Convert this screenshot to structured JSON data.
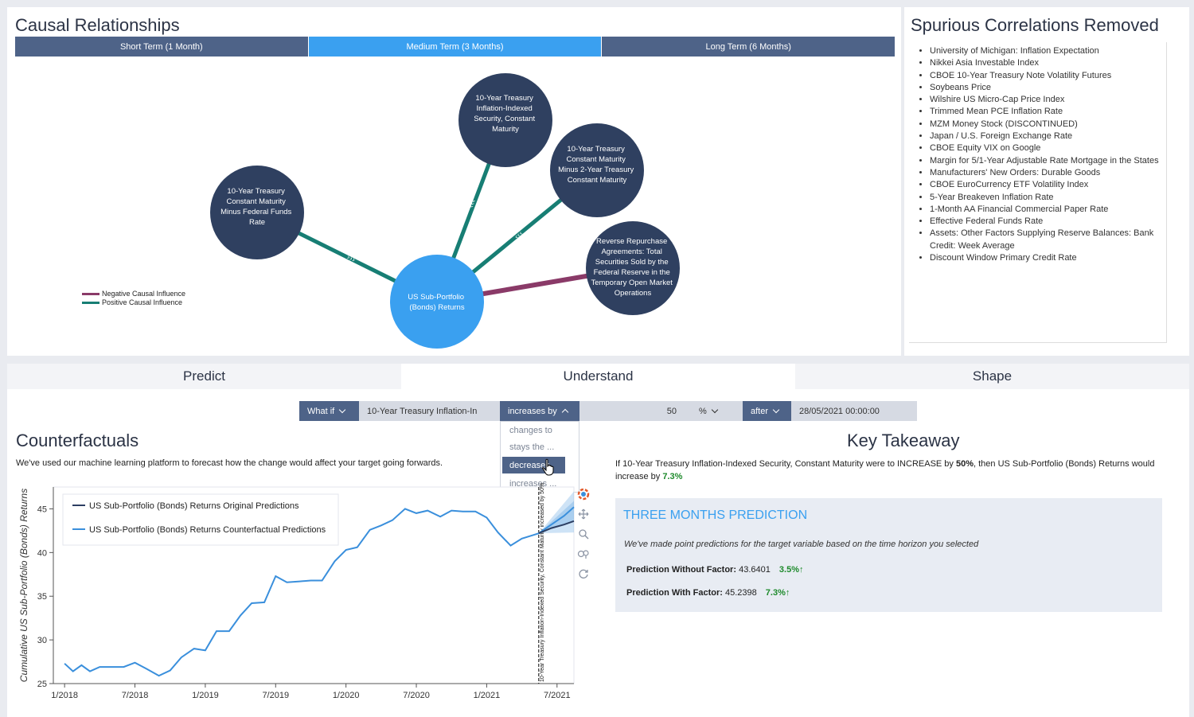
{
  "causal": {
    "title": "Causal Relationships",
    "terms": [
      "Short Term (1 Month)",
      "Medium Term (3 Months)",
      "Long Term (6 Months)"
    ],
    "active_term": 1,
    "nodes": {
      "target": [
        "US Sub-Portfolio",
        "(Bonds) Returns"
      ],
      "n1": [
        "10-Year Treasury",
        "Constant Maturity",
        "Minus Federal Funds",
        "Rate"
      ],
      "n2": [
        "10-Year Treasury",
        "Inflation-Indexed",
        "Security, Constant",
        "Maturity"
      ],
      "n3": [
        "10-Year Treasury",
        "Constant Maturity",
        "Minus 2-Year Treasury",
        "Constant Maturity"
      ],
      "n4": [
        "Reverse Repurchase",
        "Agreements: Total",
        "Securities Sold by the",
        "Federal Reserve in the",
        "Temporary Open Market",
        "Operations"
      ]
    },
    "legend": {
      "negative": "Negative Causal Influence",
      "positive": "Positive Causal Influence",
      "negative_color": "#8a3a68",
      "positive_color": "#177e74"
    }
  },
  "spurious": {
    "title": "Spurious Correlations Removed",
    "items": [
      "University of Michigan: Inflation Expectation",
      "Nikkei Asia Investable Index",
      "CBOE 10-Year Treasury Note Volatility Futures",
      "Soybeans Price",
      "Wilshire US Micro-Cap Price Index",
      "Trimmed Mean PCE Inflation Rate",
      "MZM Money Stock (DISCONTINUED)",
      "Japan / U.S. Foreign Exchange Rate",
      "CBOE Equity VIX on Google",
      "Margin for 5/1-Year Adjustable Rate Mortgage in the States",
      "Manufacturers' New Orders: Durable Goods",
      "CBOE EuroCurrency ETF Volatility Index",
      "5-Year Breakeven Inflation Rate",
      "1-Month AA Financial Commercial Paper Rate",
      "Effective Federal Funds Rate",
      "Assets: Other Factors Supplying Reserve Balances: Bank Credit: Week Average",
      "Discount Window Primary Credit Rate"
    ]
  },
  "modes": [
    "Predict",
    "Understand",
    "Shape"
  ],
  "active_mode": 1,
  "whatif": {
    "label": "What if",
    "factor": "10-Year Treasury Inflation-In",
    "operator": "increases by",
    "amount": "50",
    "unit": "%",
    "after_label": "after",
    "date": "28/05/2021 00:00:00",
    "dropdown_options": [
      "changes to",
      "stays the ...",
      "decreases",
      "increases ..."
    ],
    "dropdown_selected": 2
  },
  "counterfactuals": {
    "title": "Counterfactuals",
    "description": "We've used our machine learning platform to forecast how the change would affect your target going forwards."
  },
  "key_takeaway": {
    "title": "Key Takeaway",
    "sentence_a": "If 10-Year Treasury Inflation-Indexed Security, Constant Maturity were to INCREASE by ",
    "pct_change": "50%",
    "sentence_b": ", then US Sub-Portfolio (Bonds) Returns would increase by ",
    "effect": "7.3%"
  },
  "prediction": {
    "heading": "THREE MONTHS PREDICTION",
    "note": "We've made point predictions for the target variable based on the time horizon you selected",
    "without_label": "Prediction Without Factor:",
    "without_value": "43.6401",
    "without_change": "3.5%↑",
    "with_label": "Prediction With Factor:",
    "with_value": "45.2398",
    "with_change": "7.3%↑"
  },
  "toolbar_icons": [
    "logo-icon",
    "pan-icon",
    "zoom-icon",
    "wheel-zoom-icon",
    "reset-icon"
  ],
  "chart_data": {
    "type": "line",
    "ylabel": "Cumulative US Sub-Portfolio (Bonds) Returns",
    "xlabel": "",
    "ylim": [
      25,
      47.5
    ],
    "xlim": [
      2017.92,
      2021.62
    ],
    "yticks": [
      25,
      30,
      35,
      40,
      45
    ],
    "xticks": [
      {
        "value": 2018.0,
        "label": "1/2018"
      },
      {
        "value": 2018.5,
        "label": "7/2018"
      },
      {
        "value": 2019.0,
        "label": "1/2019"
      },
      {
        "value": 2019.5,
        "label": "7/2019"
      },
      {
        "value": 2020.0,
        "label": "1/2020"
      },
      {
        "value": 2020.5,
        "label": "7/2020"
      },
      {
        "value": 2021.0,
        "label": "1/2021"
      },
      {
        "value": 2021.5,
        "label": "7/2021"
      }
    ],
    "annotation": "10-Year Treasury Inflation-Indexed Security, Constant Maturity increased by 50%",
    "annotation_x": 2021.37,
    "series": [
      {
        "name": "US Sub-Portfolio (Bonds) Returns Original Predictions",
        "color": "#2c3e62",
        "x": [
          2021.37,
          2021.46,
          2021.55,
          2021.62
        ],
        "y": [
          42.2,
          42.8,
          43.2,
          43.6
        ]
      },
      {
        "name": "US Sub-Portfolio (Bonds) Returns Counterfactual Predictions",
        "color": "#3a8fdc",
        "x": [
          2018.0,
          2018.06,
          2018.12,
          2018.18,
          2018.25,
          2018.33,
          2018.42,
          2018.5,
          2018.58,
          2018.67,
          2018.75,
          2018.83,
          2018.92,
          2019.0,
          2019.08,
          2019.17,
          2019.25,
          2019.33,
          2019.42,
          2019.5,
          2019.58,
          2019.67,
          2019.75,
          2019.83,
          2019.92,
          2020.0,
          2020.08,
          2020.17,
          2020.25,
          2020.33,
          2020.42,
          2020.5,
          2020.58,
          2020.67,
          2020.75,
          2020.83,
          2020.92,
          2021.0,
          2021.08,
          2021.17,
          2021.25,
          2021.33,
          2021.37,
          2021.46,
          2021.55,
          2021.62
        ],
        "y": [
          27.3,
          26.4,
          27.1,
          26.4,
          26.9,
          26.9,
          26.9,
          27.4,
          26.7,
          25.9,
          26.5,
          28.0,
          29.0,
          28.8,
          31.0,
          31.0,
          32.8,
          34.2,
          34.3,
          37.3,
          36.6,
          36.7,
          36.8,
          36.8,
          39.0,
          40.3,
          40.6,
          42.6,
          43.1,
          43.7,
          45.0,
          44.5,
          44.8,
          44.1,
          44.8,
          44.7,
          44.7,
          44.0,
          42.3,
          40.8,
          41.6,
          42.0,
          42.2,
          43.2,
          44.2,
          45.2
        ]
      }
    ]
  }
}
